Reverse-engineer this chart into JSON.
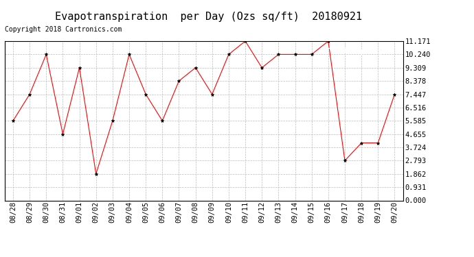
{
  "title": "Evapotranspiration  per Day (Ozs sq/ft)  20180921",
  "copyright": "Copyright 2018 Cartronics.com",
  "x_labels": [
    "08/28",
    "08/29",
    "08/30",
    "08/31",
    "09/01",
    "09/02",
    "09/03",
    "09/04",
    "09/05",
    "09/06",
    "09/07",
    "09/08",
    "09/09",
    "09/10",
    "09/11",
    "09/12",
    "09/13",
    "09/14",
    "09/15",
    "09/16",
    "09/17",
    "09/18",
    "09/19",
    "09/20"
  ],
  "y_values": [
    5.585,
    7.447,
    10.24,
    4.655,
    9.309,
    1.862,
    5.585,
    10.24,
    7.447,
    5.585,
    8.378,
    9.309,
    7.447,
    10.24,
    11.171,
    9.309,
    10.24,
    10.24,
    10.24,
    11.171,
    2.793,
    4.034,
    4.034,
    7.447
  ],
  "y_ticks": [
    0.0,
    0.931,
    1.862,
    2.793,
    3.724,
    4.655,
    5.585,
    6.516,
    7.447,
    8.378,
    9.309,
    10.24,
    11.171
  ],
  "y_min": 0.0,
  "y_max": 11.171,
  "line_color": "#ff0000",
  "marker_color": "#000000",
  "marker_style": "*",
  "bg_color": "#ffffff",
  "grid_color": "#bbbbbb",
  "legend_bg": "#ff0000",
  "legend_text_color": "#ffffff",
  "title_fontsize": 11,
  "copyright_fontsize": 7,
  "tick_fontsize": 7.5
}
